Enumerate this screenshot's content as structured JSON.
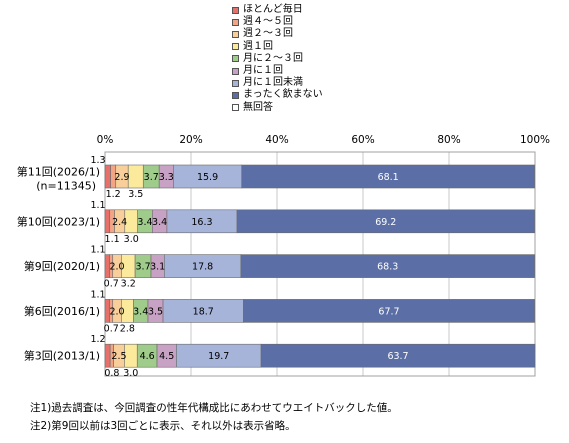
{
  "chart_data": {
    "type": "bar",
    "orientation": "horizontal",
    "stacked": true,
    "percent": true,
    "xlim": [
      0,
      100
    ],
    "xticks": [
      "0%",
      "20%",
      "40%",
      "60%",
      "80%",
      "100%"
    ],
    "grid": true,
    "legend_position": "top",
    "categories": [
      {
        "label": "第11回(2026/1)",
        "sublabel": "(n=11345)"
      },
      {
        "label": "第10回(2023/1)",
        "sublabel": ""
      },
      {
        "label": "第9回(2020/1)",
        "sublabel": ""
      },
      {
        "label": "第6回(2016/1)",
        "sublabel": ""
      },
      {
        "label": "第3回(2013/1)",
        "sublabel": ""
      }
    ],
    "series": [
      {
        "name": "ほとんど毎日",
        "color": "#e8706a",
        "values": [
          1.3,
          1.1,
          1.1,
          1.1,
          1.2
        ]
      },
      {
        "name": "週４～５回",
        "color": "#f3a484",
        "values": [
          1.2,
          1.1,
          0.7,
          0.7,
          0.8
        ]
      },
      {
        "name": "週２～３回",
        "color": "#f8cf9a",
        "values": [
          2.9,
          2.4,
          2.0,
          2.0,
          2.5
        ]
      },
      {
        "name": "週１回",
        "color": "#fbe99c",
        "values": [
          3.5,
          3.0,
          3.2,
          2.8,
          3.0
        ]
      },
      {
        "name": "月に２～３回",
        "color": "#9fcc8a",
        "values": [
          3.7,
          3.4,
          3.7,
          3.4,
          4.6
        ]
      },
      {
        "name": "月に１回",
        "color": "#c7a2c4",
        "values": [
          3.3,
          3.4,
          3.1,
          3.5,
          4.5
        ]
      },
      {
        "name": "月に１回未満",
        "color": "#a7b4da",
        "values": [
          15.9,
          16.3,
          17.8,
          18.7,
          19.7
        ]
      },
      {
        "name": "まったく飲まない",
        "color": "#5b6fa6",
        "values": [
          68.1,
          69.2,
          68.3,
          67.7,
          63.7
        ]
      },
      {
        "name": "無回答",
        "color": "#ffffff",
        "values": [
          0,
          0,
          0,
          0,
          0
        ]
      }
    ],
    "labels": [
      {
        "cat": 0,
        "series": 0,
        "text": "1.3",
        "pos": "above"
      },
      {
        "cat": 0,
        "series": 1,
        "text": "1.2",
        "pos": "below"
      },
      {
        "cat": 0,
        "series": 2,
        "text": "2.9",
        "pos": "inside"
      },
      {
        "cat": 0,
        "series": 3,
        "text": "3.5",
        "pos": "below"
      },
      {
        "cat": 0,
        "series": 4,
        "text": "3.7",
        "pos": "inside"
      },
      {
        "cat": 0,
        "series": 5,
        "text": "3.3",
        "pos": "inside"
      },
      {
        "cat": 0,
        "series": 6,
        "text": "15.9",
        "pos": "inside"
      },
      {
        "cat": 0,
        "series": 7,
        "text": "68.1",
        "pos": "inside"
      },
      {
        "cat": 1,
        "series": 0,
        "text": "1.1",
        "pos": "above"
      },
      {
        "cat": 1,
        "series": 1,
        "text": "1.1",
        "pos": "below"
      },
      {
        "cat": 1,
        "series": 2,
        "text": "2.4",
        "pos": "inside"
      },
      {
        "cat": 1,
        "series": 3,
        "text": "3.0",
        "pos": "below"
      },
      {
        "cat": 1,
        "series": 4,
        "text": "3.4",
        "pos": "inside"
      },
      {
        "cat": 1,
        "series": 5,
        "text": "3.4",
        "pos": "inside"
      },
      {
        "cat": 1,
        "series": 6,
        "text": "16.3",
        "pos": "inside"
      },
      {
        "cat": 1,
        "series": 7,
        "text": "69.2",
        "pos": "inside"
      },
      {
        "cat": 2,
        "series": 0,
        "text": "1.1",
        "pos": "above"
      },
      {
        "cat": 2,
        "series": 1,
        "text": "0.7",
        "pos": "below"
      },
      {
        "cat": 2,
        "series": 2,
        "text": "2.0",
        "pos": "inside"
      },
      {
        "cat": 2,
        "series": 3,
        "text": "3.2",
        "pos": "below"
      },
      {
        "cat": 2,
        "series": 4,
        "text": "3.7",
        "pos": "inside"
      },
      {
        "cat": 2,
        "series": 5,
        "text": "3.1",
        "pos": "inside"
      },
      {
        "cat": 2,
        "series": 6,
        "text": "17.8",
        "pos": "inside"
      },
      {
        "cat": 2,
        "series": 7,
        "text": "68.3",
        "pos": "inside"
      },
      {
        "cat": 3,
        "series": 0,
        "text": "1.1",
        "pos": "above"
      },
      {
        "cat": 3,
        "series": 1,
        "text": "0.7",
        "pos": "below"
      },
      {
        "cat": 3,
        "series": 2,
        "text": "2.0",
        "pos": "inside"
      },
      {
        "cat": 3,
        "series": 3,
        "text": "2.8",
        "pos": "below"
      },
      {
        "cat": 3,
        "series": 4,
        "text": "3.4",
        "pos": "inside"
      },
      {
        "cat": 3,
        "series": 5,
        "text": "3.5",
        "pos": "inside"
      },
      {
        "cat": 3,
        "series": 6,
        "text": "18.7",
        "pos": "inside"
      },
      {
        "cat": 3,
        "series": 7,
        "text": "67.7",
        "pos": "inside"
      },
      {
        "cat": 4,
        "series": 0,
        "text": "1.2",
        "pos": "above"
      },
      {
        "cat": 4,
        "series": 1,
        "text": "0.8",
        "pos": "below"
      },
      {
        "cat": 4,
        "series": 2,
        "text": "2.5",
        "pos": "inside"
      },
      {
        "cat": 4,
        "series": 3,
        "text": "3.0",
        "pos": "below"
      },
      {
        "cat": 4,
        "series": 4,
        "text": "4.6",
        "pos": "inside"
      },
      {
        "cat": 4,
        "series": 5,
        "text": "4.5",
        "pos": "inside"
      },
      {
        "cat": 4,
        "series": 6,
        "text": "19.7",
        "pos": "inside"
      },
      {
        "cat": 4,
        "series": 7,
        "text": "63.7",
        "pos": "inside"
      }
    ]
  },
  "notes": [
    "注1)過去調査は、今回調査の性年代構成比にあわせてウエイトバックした値。",
    "注2)第9回以前は3回ごとに表示、それ以外は表示省略。"
  ]
}
